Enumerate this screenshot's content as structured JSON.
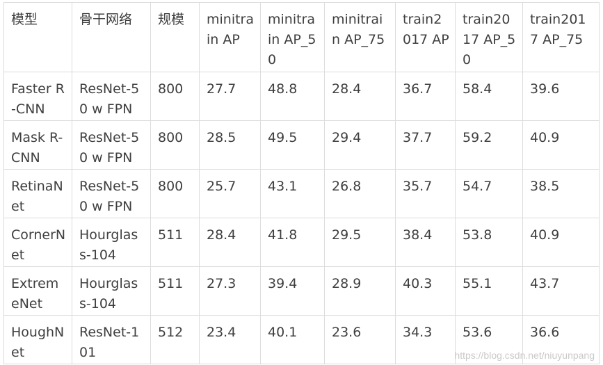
{
  "table": {
    "headers": [
      "模型",
      "骨干网络",
      "规模",
      "minitrain AP",
      "minitrain AP_50",
      "minitrain AP_75",
      "train2017 AP",
      "train2017 AP_50",
      "train2017 AP_75"
    ],
    "rows": [
      [
        "Faster R-CNN",
        "ResNet-50 w FPN",
        "800",
        "27.7",
        "48.8",
        "28.4",
        "36.7",
        "58.4",
        "39.6"
      ],
      [
        "Mask R-CNN",
        "ResNet-50 w FPN",
        "800",
        "28.5",
        "49.5",
        "29.4",
        "37.7",
        "59.2",
        "40.9"
      ],
      [
        "RetinaNet",
        "ResNet-50 w FPN",
        "800",
        "25.7",
        "43.1",
        "26.8",
        "35.7",
        "54.7",
        "38.5"
      ],
      [
        "CornerNet",
        "Hourglass-104",
        "511",
        "28.4",
        "41.8",
        "29.5",
        "38.4",
        "53.8",
        "40.9"
      ],
      [
        "ExtremeNet",
        "Hourglass-104",
        "511",
        "27.3",
        "39.4",
        "28.9",
        "40.3",
        "55.1",
        "43.7"
      ],
      [
        "HoughNet",
        "ResNet-101",
        "512",
        "23.4",
        "40.1",
        "23.6",
        "34.3",
        "53.6",
        "36.6"
      ]
    ]
  },
  "watermark": "https://blog.csdn.net/niuyunpang"
}
